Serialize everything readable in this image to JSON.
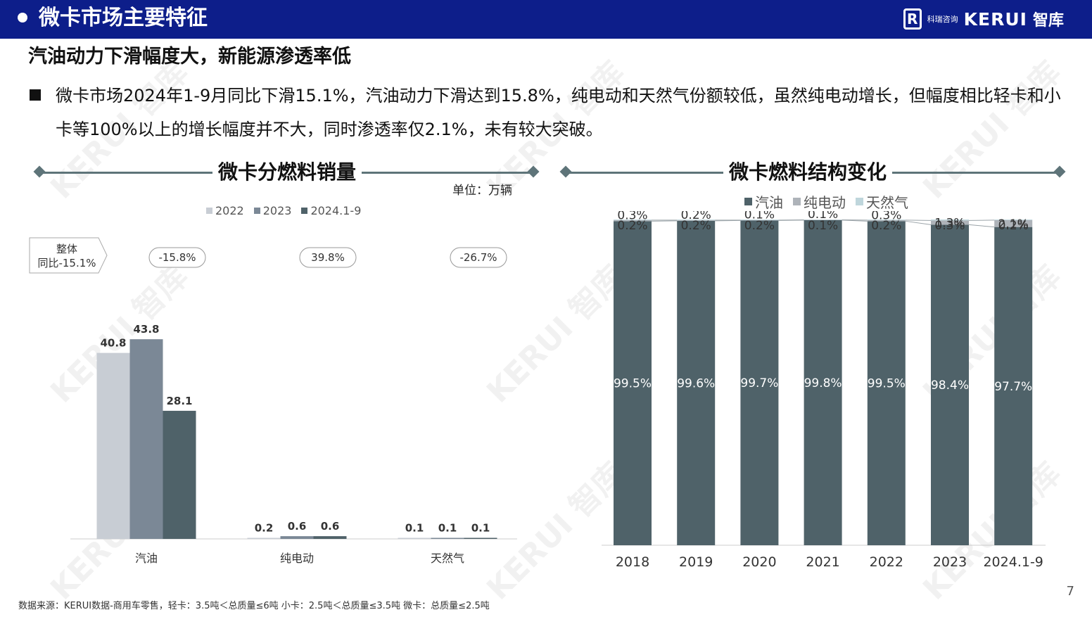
{
  "header": {
    "title": "微卡市场主要特征",
    "logo_cn_small": "科瑞咨询",
    "logo_brand": "KERUI",
    "logo_brand_cn": "智库"
  },
  "subtitle": "汽油动力下滑幅度大，新能源渗透率低",
  "bullet_text": "微卡市场2024年1-9月同比下滑15.1%，汽油动力下滑达到15.8%，纯电动和天然气份额较低，虽然纯电动增长，但幅度相比轻卡和小卡等100%以上的增长幅度并不大，同时渗透率仅2.1%，未有较大突破。",
  "left_section_title": "微卡分燃料销量",
  "right_section_title": "微卡燃料结构变化",
  "unit_label": "单位：万辆",
  "footer": "数据来源：KERUI数据-商用车零售，轻卡：3.5吨＜总质量≤6吨  小卡：2.5吨＜总质量≤3.5吨  微卡：总质量≤2.5吨",
  "page_number": "7",
  "watermark": "KERUI 智库",
  "colors": {
    "header_bg": "#0d1e8a",
    "series_2022": "#c8cdd4",
    "series_2023": "#7b8896",
    "series_2024": "#4f6269",
    "gasoline": "#4f6269",
    "electric": "#aeb3b9",
    "gas": "#bfd6dc",
    "divider": "#5e7479"
  },
  "chart_data": [
    {
      "type": "bar",
      "title": "微卡分燃料销量",
      "unit": "单位：万辆",
      "categories": [
        "汽油",
        "纯电动",
        "天然气"
      ],
      "series": [
        {
          "name": "2022",
          "values": [
            40.8,
            0.2,
            0.1
          ]
        },
        {
          "name": "2023",
          "values": [
            43.8,
            0.6,
            0.1
          ]
        },
        {
          "name": "2024.1-9",
          "values": [
            28.1,
            0.6,
            0.1
          ]
        }
      ],
      "annotations": [
        "-15.8%",
        "39.8%",
        "-26.7%"
      ],
      "callout_line1": "整体",
      "callout_line2": "同比-15.1%",
      "legend": "top"
    },
    {
      "type": "bar",
      "stacked": "percent",
      "title": "微卡燃料结构变化",
      "categories": [
        "2018",
        "2019",
        "2020",
        "2021",
        "2022",
        "2023",
        "2024.1-9"
      ],
      "series": [
        {
          "name": "汽油",
          "values": [
            99.5,
            99.6,
            99.7,
            99.8,
            99.5,
            98.4,
            97.7
          ]
        },
        {
          "name": "纯电动",
          "values": [
            0.3,
            0.2,
            0.1,
            0.1,
            0.3,
            1.3,
            2.1
          ]
        },
        {
          "name": "天然气",
          "values": [
            0.2,
            0.2,
            0.2,
            0.1,
            0.2,
            0.3,
            0.2
          ]
        }
      ],
      "legend": "top"
    }
  ]
}
